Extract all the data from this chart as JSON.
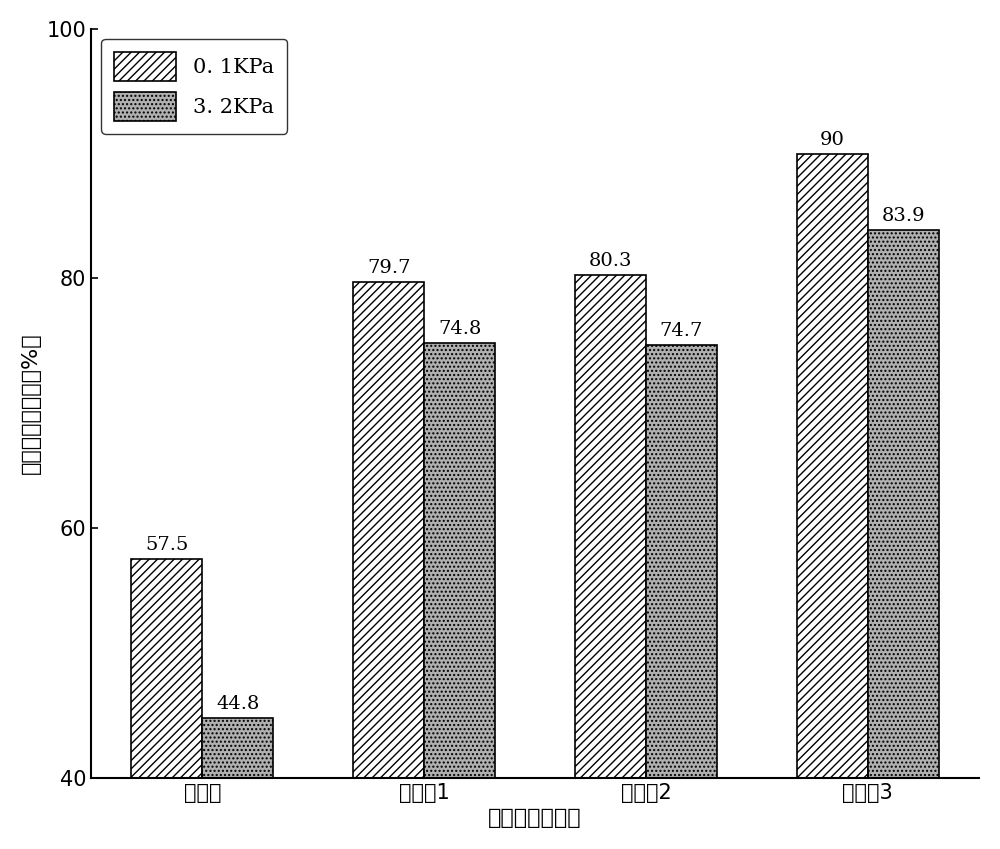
{
  "categories": [
    "对比例",
    "实施例1",
    "实施例2",
    "实施例3"
  ],
  "values_01": [
    57.5,
    79.7,
    80.3,
    90.0
  ],
  "values_32": [
    44.8,
    74.8,
    74.7,
    83.9
  ],
  "xlabel": "雾封层材料类别",
  "ylabel": "平均应变恢复率（%）",
  "ylim": [
    40,
    100
  ],
  "yticks": [
    40,
    60,
    80,
    100
  ],
  "legend_01": "0. 1KPa",
  "legend_32": "3. 2KPa",
  "bar_width": 0.32,
  "hatch_01": "////",
  "hatch_32": "....",
  "color_01": "white",
  "color_32": "#b0b0b0",
  "edgecolor": "black",
  "label_fontsize": 16,
  "tick_fontsize": 15,
  "legend_fontsize": 15,
  "value_fontsize": 14,
  "background_color": "white"
}
